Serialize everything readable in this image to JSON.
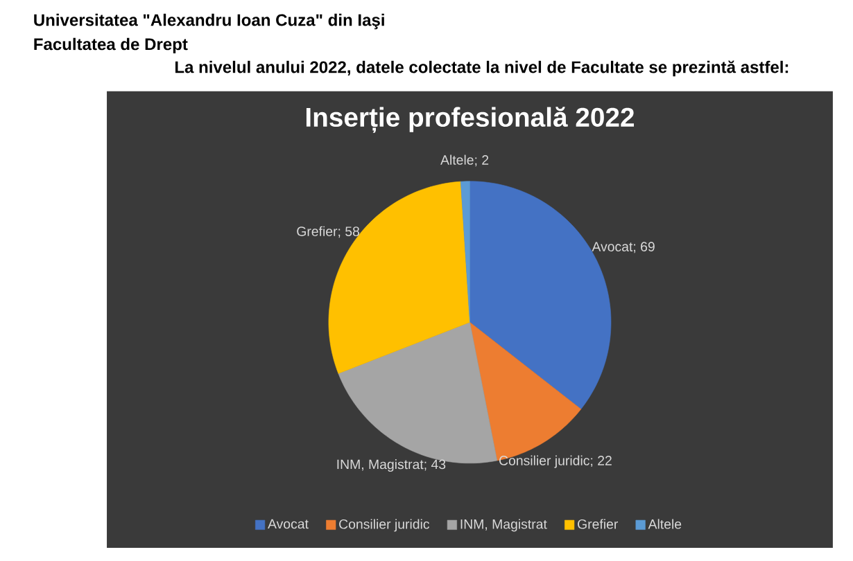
{
  "chart_data": {
    "type": "pie",
    "title": "Inserție profesională 2022",
    "annotations": [
      "Universitatea \"Alexandru Ioan Cuza\" din Iaşi",
      "Facultatea de Drept",
      "La nivelul anului 2022, datele colectate la nivel de Facultate se prezintă astfel:"
    ],
    "categories": [
      "Avocat",
      "Consilier juridic",
      "INM, Magistrat",
      "Grefier",
      "Altele"
    ],
    "values": [
      69,
      22,
      43,
      58,
      2
    ],
    "value_labels": [
      "Avocat; 69",
      "Consilier juridic; 22",
      "INM, Magistrat; 43",
      "Grefier; 58",
      "Altele; 2"
    ],
    "colors": [
      "#4472c4",
      "#ed7d31",
      "#a5a5a5",
      "#ffc000",
      "#5b9bd5"
    ],
    "legend": "bottom"
  }
}
